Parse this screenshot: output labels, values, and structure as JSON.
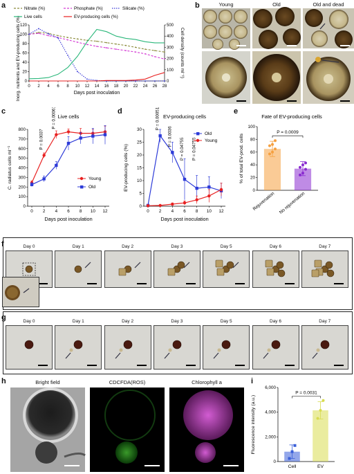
{
  "panels": {
    "a": "a",
    "b": "b",
    "c": "c",
    "d": "d",
    "e": "e",
    "f": "f",
    "g": "g",
    "h": "h",
    "i": "i"
  },
  "panel_b": {
    "young": "Young",
    "old": "Old",
    "old_dead": "Old and dead"
  },
  "panel_f": {
    "days": [
      "Day 0",
      "Day 1",
      "Day 2",
      "Day 3",
      "Day 5",
      "Day 6",
      "Day 7"
    ]
  },
  "panel_g": {
    "days": [
      "Day 0",
      "Day 1",
      "Day 2",
      "Day 3",
      "Day 5",
      "Day 6",
      "Day 7"
    ]
  },
  "panel_h": {
    "bf": "Bright field",
    "ros": "CDCFDA(ROS)",
    "chl": "Chlorophyll a"
  },
  "colors": {
    "nitrate": "#8b8b3a",
    "phosphate": "#d43bd4",
    "silicate": "#3a3ad8",
    "live": "#2ab77a",
    "ev": "#e82020",
    "young": "#e82020",
    "old": "#2d3bd8",
    "rejuv": "#f5a040",
    "norejuv": "#8a2bd0",
    "cell_bar": "#3a5fd8",
    "ev_bar": "#d8dc50"
  },
  "chart_data": [
    {
      "id": "a",
      "type": "line",
      "legend": [
        "Nitrate (%)",
        "Phosphate (%)",
        "Silicate (%)",
        "Live cells",
        "EV-producing cells (%)"
      ],
      "xlabel": "Days post inoculation",
      "ylabel": "Inorg. nutrients and EV-producing cells (%)",
      "ylabel2": "Cell density (counts ml⁻¹)",
      "x": [
        0,
        2,
        4,
        6,
        8,
        10,
        12,
        14,
        16,
        18,
        20,
        22,
        24,
        26,
        28
      ],
      "xticks": [
        "0",
        "2",
        "4",
        "6",
        "8",
        "10",
        "12",
        "14",
        "16",
        "18",
        "20",
        "22",
        "24",
        "26",
        "28"
      ],
      "yticks": [
        "0",
        "20",
        "40",
        "60",
        "80",
        "100",
        "120"
      ],
      "y2ticks": [
        "0",
        "100",
        "200",
        "300",
        "400",
        "500"
      ],
      "ylim": [
        0,
        120
      ],
      "y2lim": [
        0,
        500
      ],
      "series": [
        {
          "name": "Nitrate (%)",
          "axis": "left",
          "dash": "3,2",
          "values": [
            100,
            104,
            102,
            97,
            93,
            90,
            87,
            85,
            82,
            79,
            76,
            72,
            68,
            65,
            62
          ]
        },
        {
          "name": "Phosphate (%)",
          "axis": "left",
          "dash": "3,2",
          "values": [
            100,
            102,
            97,
            93,
            88,
            83,
            78,
            74,
            71,
            68,
            65,
            62,
            58,
            52,
            47
          ]
        },
        {
          "name": "Silicate (%)",
          "axis": "left",
          "dash": "1.5,1.5",
          "values": [
            100,
            112,
            101,
            92,
            55,
            20,
            4,
            1,
            0,
            0,
            0,
            0,
            0,
            0,
            0
          ]
        },
        {
          "name": "Live cells",
          "axis": "right",
          "dash": "",
          "values": [
            20,
            22,
            30,
            60,
            120,
            220,
            350,
            460,
            440,
            400,
            380,
            370,
            350,
            340,
            340
          ]
        },
        {
          "name": "EV-producing cells (%)",
          "axis": "left",
          "dash": "",
          "values": [
            0,
            0,
            0,
            0,
            0,
            0,
            0,
            0,
            1,
            1,
            1,
            2,
            4,
            12,
            18
          ]
        }
      ]
    },
    {
      "id": "c",
      "type": "line",
      "title": "Live cells",
      "xlabel": "Days post inoculation",
      "ylabel": "C. radiatus cells ml⁻¹",
      "x": [
        0,
        2,
        4,
        6,
        8,
        10,
        12
      ],
      "xticks": [
        "0",
        "2",
        "4",
        "6",
        "8",
        "10",
        "12"
      ],
      "yticks": [
        "0",
        "100",
        "200",
        "300",
        "400",
        "500",
        "600",
        "700",
        "800"
      ],
      "ylim": [
        0,
        800
      ],
      "series": [
        {
          "name": "Young",
          "values": [
            245,
            530,
            745,
            775,
            760,
            760,
            775
          ],
          "err": [
            20,
            25,
            40,
            30,
            50,
            40,
            60
          ]
        },
        {
          "name": "Old",
          "values": [
            225,
            285,
            425,
            655,
            710,
            730,
            745
          ],
          "err": [
            20,
            30,
            40,
            70,
            60,
            80,
            100
          ]
        }
      ],
      "annotations": [
        {
          "text": "P = 0.0037",
          "x": 2
        },
        {
          "text": "P = 0.00061",
          "x": 4
        }
      ]
    },
    {
      "id": "d",
      "type": "line",
      "title": "EV-producing cells",
      "xlabel": "Days post inoculation",
      "ylabel": "EV-producing cells (%)",
      "x": [
        0,
        2,
        4,
        6,
        8,
        10,
        12
      ],
      "xticks": [
        "0",
        "2",
        "4",
        "6",
        "8",
        "10",
        "12"
      ],
      "yticks": [
        "0",
        "5",
        "10",
        "15",
        "20",
        "25",
        "30"
      ],
      "ylim": [
        0,
        30
      ],
      "series": [
        {
          "name": "Old",
          "values": [
            0.3,
            27.5,
            21,
            10.5,
            7,
            7.5,
            6
          ],
          "err": [
            0.3,
            2.5,
            4,
            8,
            5,
            4,
            3
          ]
        },
        {
          "name": "Young",
          "values": [
            0.2,
            0.3,
            0.8,
            1.3,
            2.5,
            4,
            6.5
          ],
          "err": [
            0.2,
            0.3,
            0.5,
            0.8,
            1.5,
            2.5,
            2.5
          ]
        }
      ],
      "annotations": [
        {
          "text": "P = 0.00051",
          "x": 2
        },
        {
          "text": "P = 0.0036",
          "x": 4
        },
        {
          "text": "P = 0.04755",
          "x": 6
        },
        {
          "text": "P = 0.04755",
          "x": 8
        }
      ]
    },
    {
      "id": "e",
      "type": "bar",
      "title": "Fate of EV-producing cells",
      "ylabel": "% of total EV-prod. cells",
      "categories": [
        "Rejuvenation",
        "No rejuvenation"
      ],
      "values": [
        65,
        34
      ],
      "err": [
        12,
        11
      ],
      "points": [
        [
          57,
          60,
          65,
          70,
          72,
          78
        ],
        [
          24,
          27,
          33,
          36,
          40,
          43
        ]
      ],
      "yticks": [
        "0",
        "20",
        "40",
        "60",
        "80",
        "100"
      ],
      "ylim": [
        0,
        100
      ],
      "annotation": "P = 0.0009"
    },
    {
      "id": "i",
      "type": "bar",
      "ylabel": "Fluorescence intensity (a.u.)",
      "categories": [
        "Cell",
        "EV"
      ],
      "values": [
        800,
        4150
      ],
      "err": [
        550,
        700
      ],
      "points": [
        [
          250,
          800,
          1300
        ],
        [
          3500,
          4150,
          4950
        ]
      ],
      "yticks": [
        "0",
        "2,000",
        "4,000",
        "6,000"
      ],
      "ylim": [
        0,
        6000
      ],
      "annotation": "P = 0.0031"
    }
  ]
}
